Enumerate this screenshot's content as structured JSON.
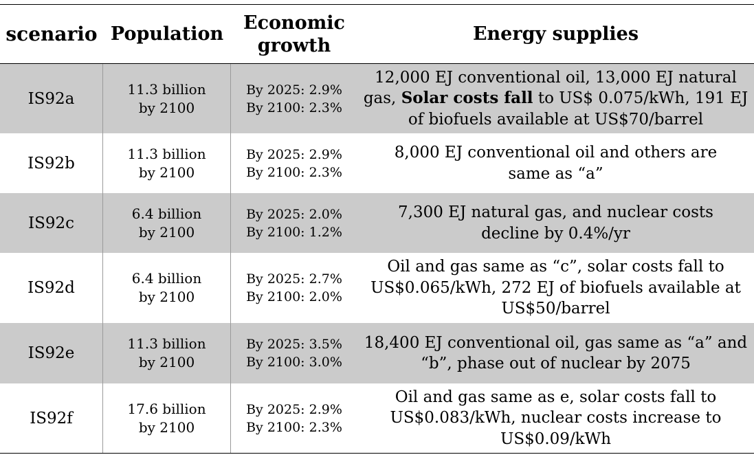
{
  "header": {
    "scenario": "scenario",
    "population": "Population",
    "economic_growth": "Economic growth",
    "energy_supplies": "Energy supplies"
  },
  "rows": [
    {
      "scenario": "IS92a",
      "population": [
        "11.3 billion",
        "by 2100"
      ],
      "growth": [
        "By 2025: 2.9%",
        "By 2100: 2.3%"
      ],
      "energy_before": "12,000 EJ conventional oil, 13,000 EJ natural gas, ",
      "energy_bold": "Solar costs fall",
      "energy_after": " to US$ 0.075/kWh, 191 EJ of biofuels available at US$70/barrel"
    },
    {
      "scenario": "IS92b",
      "population": [
        "11.3 billion",
        "by 2100"
      ],
      "growth": [
        "By 2025: 2.9%",
        "By 2100: 2.3%"
      ],
      "energy": "8,000 EJ conventional oil and others are same as “a”"
    },
    {
      "scenario": "IS92c",
      "population": [
        "6.4 billion",
        "by 2100"
      ],
      "growth": [
        "By 2025: 2.0%",
        "By 2100: 1.2%"
      ],
      "energy": "7,300 EJ natural gas, and nuclear costs decline by 0.4%/yr"
    },
    {
      "scenario": "IS92d",
      "population": [
        "6.4 billion",
        "by 2100"
      ],
      "growth": [
        "By 2025: 2.7%",
        "By 2100: 2.0%"
      ],
      "energy": "Oil and gas same as “c”, solar costs fall to US$0.065/kWh, 272 EJ of biofuels available at US$50/barrel"
    },
    {
      "scenario": "IS92e",
      "population": [
        "11.3 billion",
        "by 2100"
      ],
      "growth": [
        "By 2025: 3.5%",
        "By 2100: 3.0%"
      ],
      "energy": "18,400 EJ conventional oil, gas same as “a” and “b”, phase out of nuclear by 2075"
    },
    {
      "scenario": "IS92f",
      "population": [
        "17.6 billion",
        "by 2100"
      ],
      "growth": [
        "By 2025: 2.9%",
        "By 2100: 2.3%"
      ],
      "energy": "Oil and gas same as e, solar costs fall to US$0.083/kWh, nuclear costs increase to US$0.09/kWh"
    }
  ]
}
